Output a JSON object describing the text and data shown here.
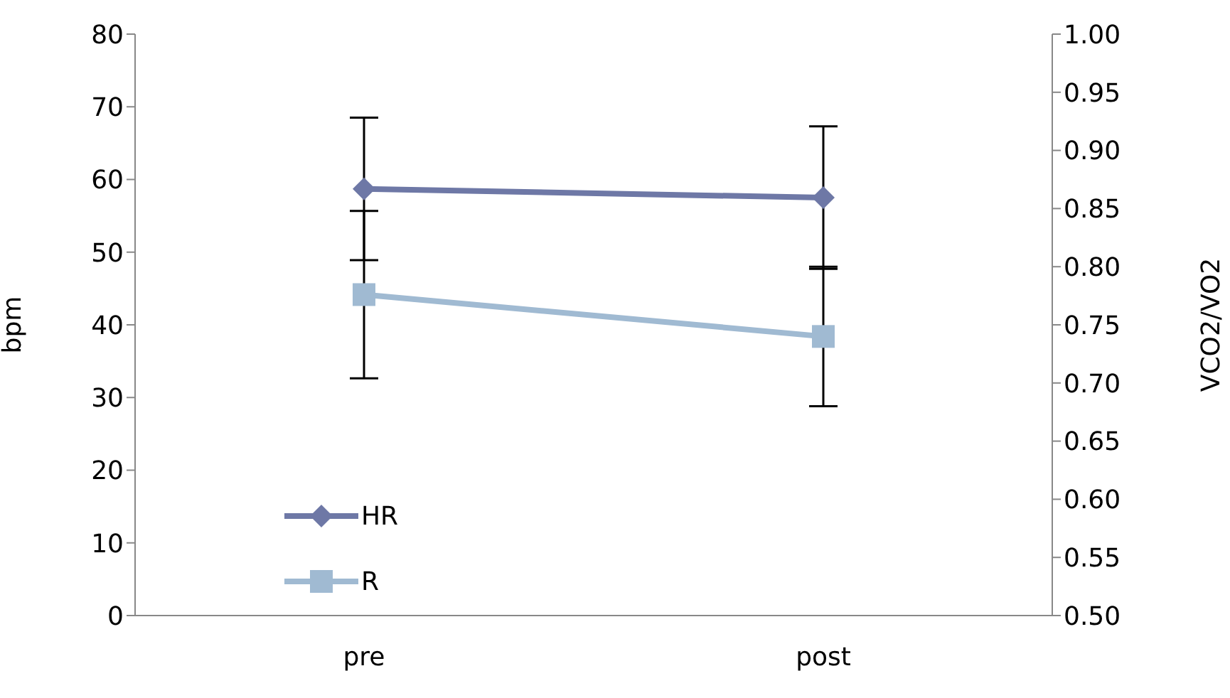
{
  "chart_data": {
    "type": "line",
    "categories": [
      "pre",
      "post"
    ],
    "ylabel": "bpm",
    "y2label": "VCO2/VO2",
    "ylim": [
      0,
      80
    ],
    "yticks": [
      0,
      10,
      20,
      30,
      40,
      50,
      60,
      70,
      80
    ],
    "y2lim": [
      0.5,
      1.0
    ],
    "y2ticks": [
      {
        "value": 0.5,
        "label": "0.50"
      },
      {
        "value": 0.55,
        "label": "0.55"
      },
      {
        "value": 0.6,
        "label": "0.60"
      },
      {
        "value": 0.65,
        "label": "0.65"
      },
      {
        "value": 0.7,
        "label": "0.70"
      },
      {
        "value": 0.75,
        "label": "0.75"
      },
      {
        "value": 0.8,
        "label": "0.80"
      },
      {
        "value": 0.85,
        "label": "0.85"
      },
      {
        "value": 0.9,
        "label": "0.90"
      },
      {
        "value": 0.95,
        "label": "0.95"
      },
      {
        "value": 1.0,
        "label": "1.00"
      }
    ],
    "legend": "bottom left",
    "series": [
      {
        "name": "HR",
        "color": "#6e78a6",
        "values": [
          58.7,
          57.5
        ],
        "errors": [
          9.8,
          9.8
        ],
        "marker": "diamond"
      },
      {
        "name": "R",
        "color": "#a0bad2",
        "values": [
          0.776,
          0.74
        ],
        "errors": [
          0.072,
          0.06
        ],
        "axis": "y2",
        "marker": "square"
      }
    ]
  }
}
